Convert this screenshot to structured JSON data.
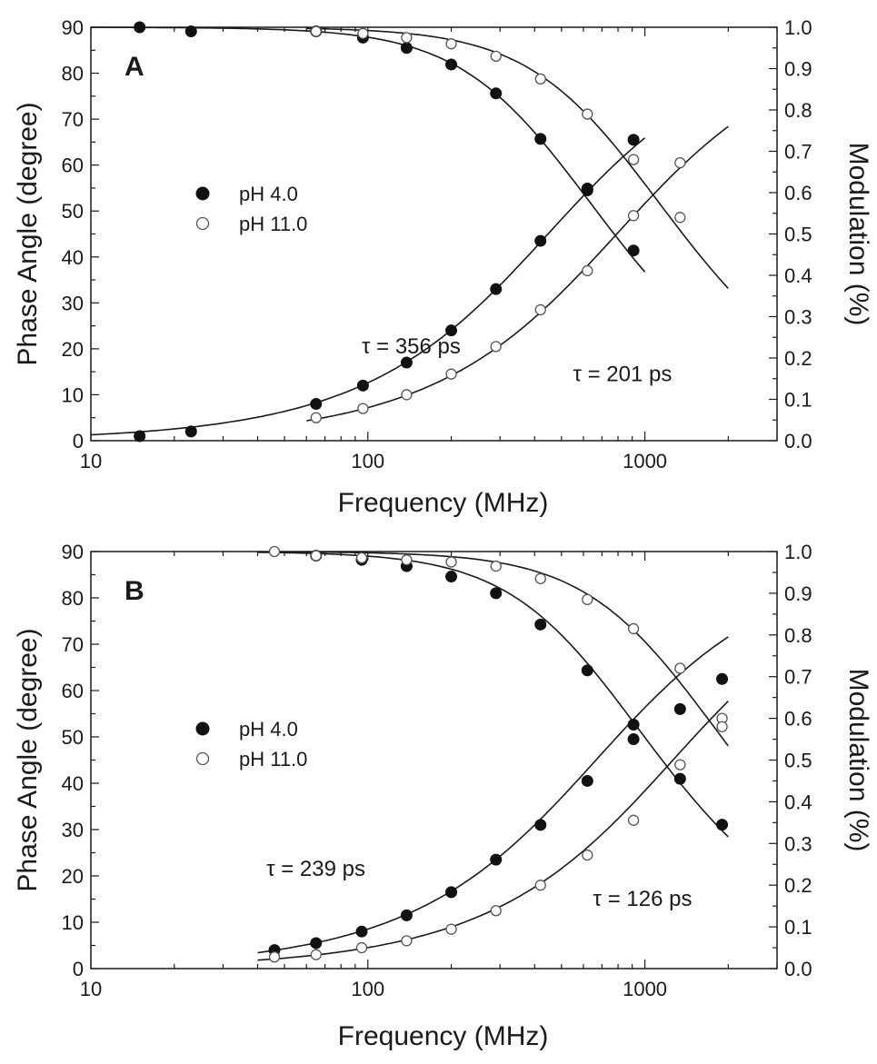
{
  "chart_data": [
    {
      "type": "scatter",
      "panel_label": "A",
      "xlabel": "Frequency (MHz)",
      "ylabel_left": "Phase Angle (degree)",
      "ylabel_right": "Modulation (%)",
      "x_scale": "log",
      "xlim": [
        10,
        3000
      ],
      "ylim_left": [
        0,
        90
      ],
      "ylim_right": [
        0.0,
        1.0
      ],
      "x_ticks": [
        "10",
        "100",
        "1000"
      ],
      "y_left_ticks": [
        "0",
        "10",
        "20",
        "30",
        "40",
        "50",
        "60",
        "70",
        "80",
        "90"
      ],
      "y_right_ticks": [
        "0.0",
        "0.1",
        "0.2",
        "0.3",
        "0.4",
        "0.5",
        "0.6",
        "0.7",
        "0.8",
        "0.9",
        "1.0"
      ],
      "legend_position": "middle-left",
      "series": [
        {
          "name": "pH 4.0",
          "marker": "filled-circle",
          "quantity": "phase",
          "x": [
            15,
            23,
            65,
            96,
            138,
            200,
            290,
            420,
            620,
            910
          ],
          "y": [
            1,
            2,
            8,
            12,
            17,
            24,
            33,
            43.5,
            54.5,
            65.5
          ]
        },
        {
          "name": "pH 4.0",
          "marker": "filled-circle",
          "quantity": "modulation",
          "x": [
            15,
            23,
            65,
            96,
            138,
            200,
            290,
            420,
            620,
            910
          ],
          "y": [
            1.0,
            0.99,
            0.99,
            0.975,
            0.95,
            0.91,
            0.84,
            0.73,
            0.61,
            0.46
          ]
        },
        {
          "name": "pH 11.0",
          "marker": "open-circle",
          "quantity": "phase",
          "x": [
            65,
            96,
            138,
            200,
            290,
            420,
            620,
            910,
            1340
          ],
          "y": [
            5,
            7,
            10,
            14.5,
            20.5,
            28.5,
            37,
            49,
            60.5
          ]
        },
        {
          "name": "pH 11.0",
          "marker": "open-circle",
          "quantity": "modulation",
          "x": [
            65,
            96,
            138,
            200,
            290,
            420,
            620,
            910,
            1340
          ],
          "y": [
            0.99,
            0.985,
            0.975,
            0.96,
            0.93,
            0.875,
            0.79,
            0.68,
            0.54
          ]
        }
      ],
      "fits": [
        {
          "quantity": "phase",
          "tau_ps": 356,
          "x_range": [
            10,
            1000
          ]
        },
        {
          "quantity": "modulation",
          "tau_ps": 356,
          "x_range": [
            10,
            1000
          ]
        },
        {
          "quantity": "phase",
          "tau_ps": 201,
          "x_range": [
            60,
            2000
          ]
        },
        {
          "quantity": "modulation",
          "tau_ps": 201,
          "x_range": [
            60,
            2000
          ]
        }
      ],
      "annotations": [
        {
          "text": "τ = 356 ps",
          "at_x": 95,
          "at_y": 19
        },
        {
          "text": "τ = 201 ps",
          "at_x": 550,
          "at_y": 13
        }
      ]
    },
    {
      "type": "scatter",
      "panel_label": "B",
      "xlabel": "Frequency (MHz)",
      "ylabel_left": "Phase Angle (degree)",
      "ylabel_right": "Modulation (%)",
      "x_scale": "log",
      "xlim": [
        10,
        3000
      ],
      "ylim_left": [
        0,
        90
      ],
      "ylim_right": [
        0.0,
        1.0
      ],
      "x_ticks": [
        "10",
        "100",
        "1000"
      ],
      "y_left_ticks": [
        "0",
        "10",
        "20",
        "30",
        "40",
        "50",
        "60",
        "70",
        "80",
        "90"
      ],
      "y_right_ticks": [
        "0.0",
        "0.1",
        "0.2",
        "0.3",
        "0.4",
        "0.5",
        "0.6",
        "0.7",
        "0.8",
        "0.9",
        "1.0"
      ],
      "legend_position": "middle-left",
      "series": [
        {
          "name": "pH 4.0",
          "marker": "filled-circle",
          "quantity": "phase",
          "x": [
            46,
            65,
            95,
            138,
            200,
            290,
            420,
            620,
            910,
            1340,
            1900
          ],
          "y": [
            4,
            5.5,
            8,
            11.5,
            16.5,
            23.5,
            31,
            40.5,
            49.5,
            56,
            62.5
          ]
        },
        {
          "name": "pH 4.0",
          "marker": "filled-circle",
          "quantity": "modulation",
          "x": [
            65,
            95,
            138,
            200,
            290,
            420,
            620,
            910,
            1340,
            1900
          ],
          "y": [
            0.99,
            0.98,
            0.965,
            0.94,
            0.9,
            0.825,
            0.715,
            0.585,
            0.455,
            0.345
          ]
        },
        {
          "name": "pH 11.0",
          "marker": "open-circle",
          "quantity": "phase",
          "x": [
            46,
            65,
            95,
            138,
            200,
            290,
            420,
            620,
            910,
            1340,
            1900
          ],
          "y": [
            2.5,
            3,
            4.5,
            6,
            8.5,
            12.5,
            18,
            24.5,
            32,
            44,
            54
          ]
        },
        {
          "name": "pH 11.0",
          "marker": "open-circle",
          "quantity": "modulation",
          "x": [
            46,
            65,
            95,
            138,
            200,
            290,
            420,
            620,
            910,
            1340,
            1900
          ],
          "y": [
            1.0,
            0.99,
            0.985,
            0.98,
            0.975,
            0.965,
            0.935,
            0.885,
            0.815,
            0.72,
            0.58
          ]
        }
      ],
      "fits": [
        {
          "quantity": "phase",
          "tau_ps": 239,
          "x_range": [
            40,
            2000
          ]
        },
        {
          "quantity": "modulation",
          "tau_ps": 239,
          "x_range": [
            40,
            2000
          ]
        },
        {
          "quantity": "phase",
          "tau_ps": 126,
          "x_range": [
            40,
            2000
          ]
        },
        {
          "quantity": "modulation",
          "tau_ps": 126,
          "x_range": [
            40,
            2000
          ]
        }
      ],
      "annotations": [
        {
          "text": "τ = 239 ps",
          "at_x": 43,
          "at_y": 20
        },
        {
          "text": "τ = 126 ps",
          "at_x": 650,
          "at_y": 13.5
        }
      ]
    }
  ]
}
